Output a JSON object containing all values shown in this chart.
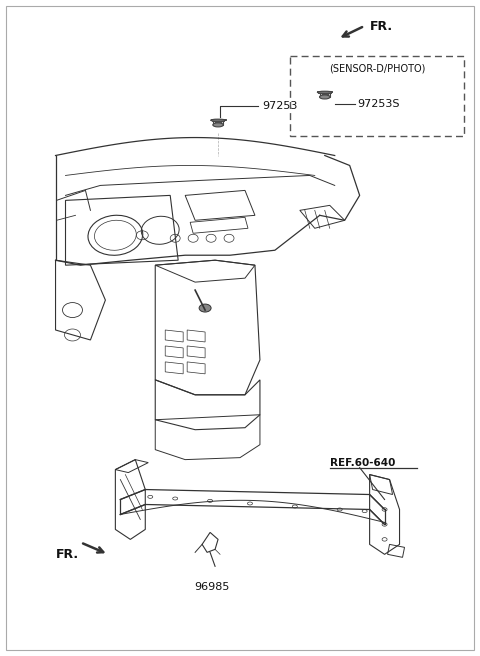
{
  "background_color": "#ffffff",
  "fig_width": 4.8,
  "fig_height": 6.56,
  "dpi": 100,
  "line_color": "#333333",
  "text_color": "#111111",
  "font_size_label": 8,
  "font_size_ref": 7.5,
  "font_size_fr": 9,
  "part_97253_label": "97253",
  "part_97253S_label": "97253S",
  "sensor_box_label": "(SENSOR-D/PHOTO)",
  "ref_label": "REF.60-640",
  "part_96985_label": "96985",
  "fr_label": "FR."
}
